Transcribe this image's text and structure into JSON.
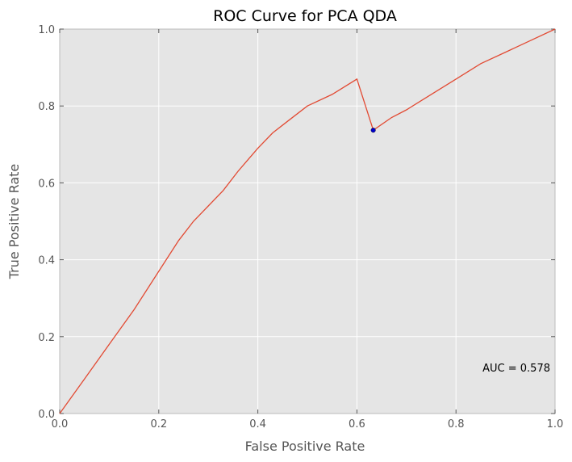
{
  "chart_data": {
    "type": "line",
    "title": "ROC Curve for PCA QDA",
    "xlabel": "False Positive Rate",
    "ylabel": "True Positive Rate",
    "xlim": [
      0.0,
      1.0
    ],
    "ylim": [
      0.0,
      1.0
    ],
    "x_ticks": [
      "0.0",
      "0.2",
      "0.4",
      "0.6",
      "0.8",
      "1.0"
    ],
    "y_ticks": [
      "0.0",
      "0.2",
      "0.4",
      "0.6",
      "0.8",
      "1.0"
    ],
    "grid": true,
    "background": "#e5e5e5",
    "series": [
      {
        "color": "#e24a33",
        "x": [
          0.0,
          0.05,
          0.1,
          0.15,
          0.2,
          0.24,
          0.27,
          0.3,
          0.33,
          0.36,
          0.38,
          0.4,
          0.43,
          0.46,
          0.5,
          0.55,
          0.6,
          0.633,
          0.67,
          0.7,
          0.75,
          0.8,
          0.85,
          0.9,
          0.95,
          1.0
        ],
        "y": [
          0.0,
          0.09,
          0.18,
          0.27,
          0.37,
          0.45,
          0.5,
          0.54,
          0.58,
          0.63,
          0.66,
          0.69,
          0.73,
          0.76,
          0.8,
          0.83,
          0.87,
          0.737,
          0.77,
          0.79,
          0.83,
          0.87,
          0.91,
          0.94,
          0.97,
          1.0
        ]
      }
    ],
    "marker": {
      "x": 0.633,
      "y": 0.737,
      "color": "#0000cc"
    },
    "annotation": "AUC = 0.578"
  }
}
